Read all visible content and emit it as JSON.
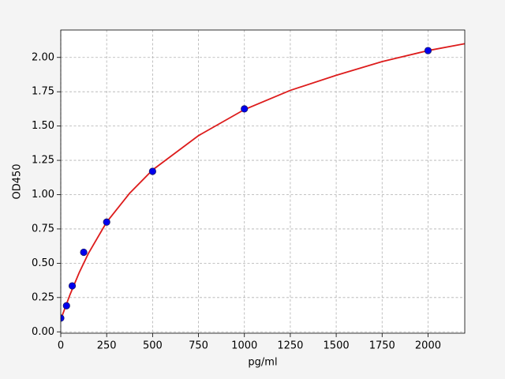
{
  "chart_data": {
    "type": "scatter",
    "xlabel": "pg/ml",
    "ylabel": "OD450",
    "points": {
      "x": [
        0,
        31.25,
        62.5,
        125,
        250,
        500,
        1000,
        2000
      ],
      "y": [
        0.1,
        0.19,
        0.335,
        0.58,
        0.8,
        1.17,
        1.625,
        2.05
      ],
      "color": "#0000ee"
    },
    "fit": {
      "x": [
        0,
        50,
        100,
        150,
        250,
        375,
        500,
        750,
        1000,
        1250,
        1500,
        1750,
        2000,
        2200
      ],
      "y": [
        0.09,
        0.27,
        0.43,
        0.57,
        0.8,
        1.01,
        1.18,
        1.43,
        1.62,
        1.76,
        1.87,
        1.97,
        2.05,
        2.1
      ],
      "color": "#dd1c1c"
    },
    "xlim": [
      0,
      2200
    ],
    "xticks": [
      0,
      250,
      500,
      750,
      1000,
      1250,
      1500,
      1750,
      2000
    ],
    "ylim": [
      -0.01,
      2.2
    ],
    "yticks": [
      {
        "value": 0,
        "label": "0.00"
      },
      {
        "value": 0.25,
        "label": "0.25"
      },
      {
        "value": 0.5,
        "label": "0.50"
      },
      {
        "value": 0.75,
        "label": "0.75"
      },
      {
        "value": 1,
        "label": "1.00"
      },
      {
        "value": 1.25,
        "label": "1.25"
      },
      {
        "value": 1.5,
        "label": "1.50"
      },
      {
        "value": 1.75,
        "label": "1.75"
      },
      {
        "value": 2,
        "label": "2.00"
      }
    ],
    "grid": true
  }
}
